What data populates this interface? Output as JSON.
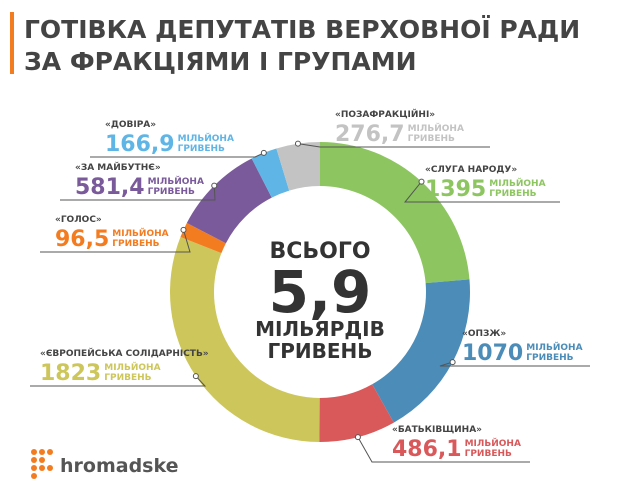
{
  "chart_data": {
    "type": "donut",
    "title_line1": "ГОТІВКА ДЕПУТАТІВ ВЕРХОВНОЇ РАДИ",
    "title_line2": "ЗА ФРАКЦІЯМИ І ГРУПАМИ",
    "unit_line1": "МІЛЬЙОНА",
    "unit_line2": "ГРИВЕНЬ",
    "center_top": "ВСЬОГО",
    "total": {
      "value": 5.9,
      "label": "5,9"
    },
    "center_unit_line1": "МІЛЬЯРДІВ",
    "center_unit_line2": "ГРИВЕНЬ",
    "brand": "hromadske",
    "categories": [
      "«СЛУГА НАРОДУ»",
      "«ОПЗЖ»",
      "«БАТЬКІВЩИНА»",
      "«ЄВРОПЕЙСЬКА СОЛІДАРНІСТЬ»",
      "«ГОЛОС»",
      "«ЗА МАЙБУТНЄ»",
      "«ДОВІРА»",
      "«ПОЗАФРАКЦІЙНІ»"
    ],
    "values": [
      1395,
      1070,
      486.1,
      1823,
      96.5,
      581.4,
      166.9,
      276.7
    ],
    "value_labels": [
      "1395",
      "1070",
      "486,1",
      "1823",
      "96,5",
      "581,4",
      "166,9",
      "276,7"
    ],
    "colors": [
      "#8dc561",
      "#4b8cb8",
      "#d9595b",
      "#cdc65b",
      "#f47c20",
      "#7a5a9b",
      "#5fb5e5",
      "#c3c3c3"
    ]
  }
}
